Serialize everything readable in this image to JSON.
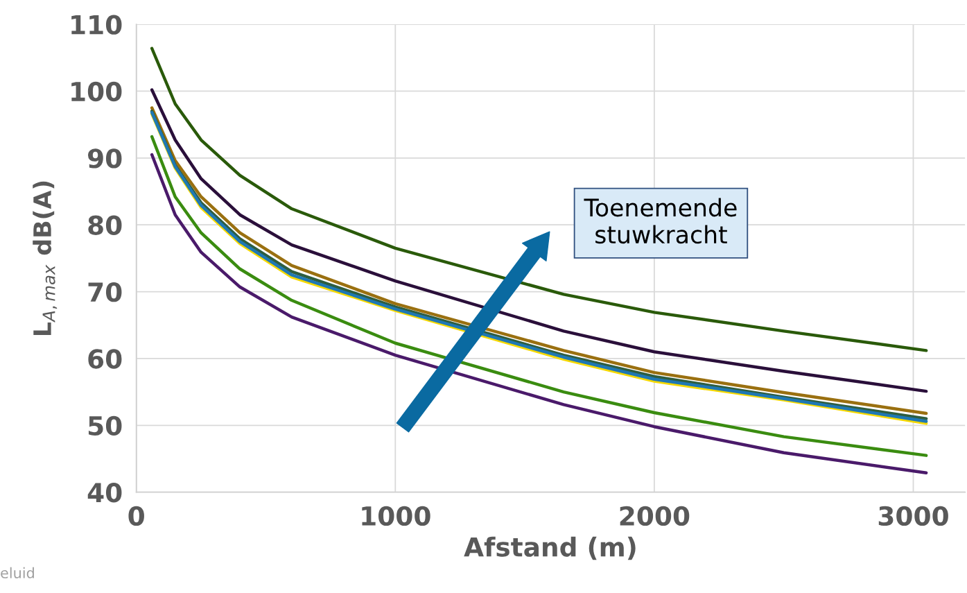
{
  "chart_data": {
    "type": "line",
    "xlabel": "Afstand (m)",
    "ylabel": "L$_{A,max}$ dB(A)",
    "x": [
      60,
      150,
      250,
      400,
      600,
      1000,
      1650,
      2000,
      2500,
      3050
    ],
    "series": [
      {
        "color": "#2a5a0a",
        "values": [
          106.4,
          98.1,
          92.7,
          87.4,
          82.4,
          76.5,
          69.6,
          66.9,
          64.1,
          61.2
        ]
      },
      {
        "color": "#2a0f3a",
        "values": [
          100.2,
          92.7,
          86.9,
          81.5,
          77.0,
          71.6,
          64.1,
          61.0,
          58.1,
          55.1
        ]
      },
      {
        "color": "#9a7010",
        "values": [
          97.5,
          89.6,
          84.2,
          78.8,
          73.9,
          68.2,
          61.2,
          57.9,
          54.9,
          51.8
        ]
      },
      {
        "color": "#2e5e40",
        "values": [
          97.0,
          88.9,
          83.3,
          77.9,
          73.0,
          67.7,
          60.5,
          57.3,
          54.2,
          51.0
        ]
      },
      {
        "color": "#1f78b4",
        "values": [
          96.8,
          88.7,
          82.9,
          77.5,
          72.5,
          67.4,
          60.2,
          56.9,
          54.0,
          50.6
        ]
      },
      {
        "color": "#f5d800",
        "values": [
          96.6,
          88.5,
          82.6,
          77.2,
          72.2,
          67.2,
          59.9,
          56.6,
          53.8,
          50.3
        ]
      },
      {
        "color": "#3a8c10",
        "values": [
          93.2,
          84.2,
          78.8,
          73.4,
          68.7,
          62.3,
          55.0,
          51.9,
          48.3,
          45.5
        ]
      },
      {
        "color": "#4a1a6a",
        "values": [
          90.5,
          81.5,
          75.9,
          70.7,
          66.2,
          60.5,
          53.1,
          49.8,
          45.9,
          42.9
        ]
      }
    ],
    "xlim": [
      0,
      3200
    ],
    "xticks": [
      0,
      1000,
      2000,
      3000
    ],
    "ylim": [
      40,
      110
    ],
    "yticks": [
      40,
      50,
      60,
      70,
      80,
      90,
      100,
      110
    ],
    "grid": true,
    "marker": "none",
    "line_style": "solid",
    "annotations": [
      "Toenemende\nstuwkracht",
      "eluid"
    ]
  }
}
